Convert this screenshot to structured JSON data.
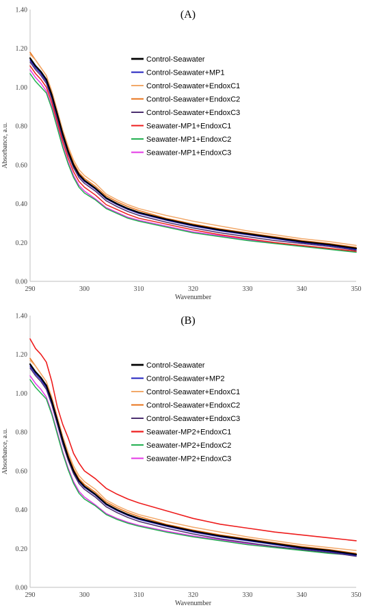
{
  "chart_data": [
    {
      "type": "line",
      "title": "(A)",
      "xlabel": "Wavenumber",
      "ylabel": "Absorbance, a.u.",
      "xlim": [
        290,
        350
      ],
      "ylim": [
        0,
        1.4
      ],
      "xticks": [
        290,
        300,
        310,
        320,
        330,
        340,
        350
      ],
      "xtick_labels": [
        "290",
        "300",
        "310",
        "320",
        "330",
        "340",
        "350"
      ],
      "yticks": [
        0,
        0.2,
        0.4,
        0.6,
        0.8,
        1.0,
        1.2,
        1.4
      ],
      "ytick_labels": [
        "0.00",
        "0.20",
        "0.40",
        "0.60",
        "0.80",
        "1.00",
        "1.20",
        "1.40"
      ],
      "grid": false,
      "legend_position": "top-right",
      "x": [
        290,
        291,
        292,
        293,
        294,
        295,
        296,
        297,
        298,
        299,
        300,
        302,
        304,
        306,
        308,
        310,
        315,
        320,
        325,
        330,
        335,
        340,
        345,
        350
      ],
      "series": [
        {
          "name": "Control-Seawater",
          "color": "#000000",
          "width": 2.2,
          "values": [
            1.15,
            1.11,
            1.08,
            1.04,
            0.96,
            0.86,
            0.76,
            0.67,
            0.6,
            0.55,
            0.52,
            0.48,
            0.43,
            0.4,
            0.375,
            0.355,
            0.32,
            0.29,
            0.265,
            0.245,
            0.225,
            0.205,
            0.19,
            0.17
          ]
        },
        {
          "name": "Control-Seawater+MP1",
          "color": "#1f1fbf",
          "width": 1.5,
          "values": [
            1.14,
            1.1,
            1.07,
            1.03,
            0.95,
            0.85,
            0.75,
            0.665,
            0.595,
            0.545,
            0.515,
            0.475,
            0.425,
            0.395,
            0.37,
            0.35,
            0.315,
            0.285,
            0.26,
            0.24,
            0.22,
            0.2,
            0.185,
            0.165
          ]
        },
        {
          "name": "Control-Seawater+EndoxC1",
          "color": "#f2a869",
          "width": 1.5,
          "values": [
            1.17,
            1.14,
            1.1,
            1.06,
            0.98,
            0.88,
            0.78,
            0.695,
            0.625,
            0.575,
            0.545,
            0.505,
            0.45,
            0.42,
            0.395,
            0.375,
            0.34,
            0.31,
            0.285,
            0.26,
            0.24,
            0.22,
            0.205,
            0.185
          ]
        },
        {
          "name": "Control-Seawater+EndoxC2",
          "color": "#e8731a",
          "width": 1.5,
          "values": [
            1.18,
            1.14,
            1.1,
            1.06,
            0.97,
            0.87,
            0.77,
            0.68,
            0.61,
            0.56,
            0.53,
            0.49,
            0.44,
            0.41,
            0.385,
            0.365,
            0.325,
            0.295,
            0.27,
            0.25,
            0.23,
            0.21,
            0.195,
            0.175
          ]
        },
        {
          "name": "Control-Seawater+EndoxC3",
          "color": "#4b2e6e",
          "width": 1.5,
          "values": [
            1.13,
            1.09,
            1.06,
            1.02,
            0.94,
            0.84,
            0.74,
            0.655,
            0.585,
            0.535,
            0.505,
            0.465,
            0.415,
            0.385,
            0.36,
            0.34,
            0.305,
            0.275,
            0.25,
            0.23,
            0.21,
            0.195,
            0.18,
            0.16
          ]
        },
        {
          "name": "Seawater-MP1+EndoxC1",
          "color": "#ee1c1c",
          "width": 1.5,
          "values": [
            1.11,
            1.07,
            1.04,
            1.0,
            0.92,
            0.82,
            0.72,
            0.635,
            0.565,
            0.515,
            0.485,
            0.445,
            0.395,
            0.37,
            0.345,
            0.325,
            0.295,
            0.265,
            0.24,
            0.22,
            0.2,
            0.185,
            0.17,
            0.155
          ]
        },
        {
          "name": "Seawater-MP1+EndoxC2",
          "color": "#22b050",
          "width": 1.5,
          "values": [
            1.07,
            1.03,
            1.0,
            0.97,
            0.89,
            0.79,
            0.69,
            0.605,
            0.535,
            0.485,
            0.455,
            0.42,
            0.375,
            0.35,
            0.325,
            0.31,
            0.28,
            0.25,
            0.23,
            0.21,
            0.195,
            0.18,
            0.165,
            0.15
          ]
        },
        {
          "name": "Seawater-MP1+EndoxC3",
          "color": "#e336e6",
          "width": 1.5,
          "values": [
            1.09,
            1.05,
            1.02,
            0.98,
            0.9,
            0.8,
            0.7,
            0.615,
            0.545,
            0.495,
            0.465,
            0.425,
            0.38,
            0.355,
            0.33,
            0.315,
            0.285,
            0.255,
            0.235,
            0.215,
            0.198,
            0.183,
            0.168,
            0.152
          ]
        }
      ]
    },
    {
      "type": "line",
      "title": "(B)",
      "xlabel": "Wavenumber",
      "ylabel": "Absorbance, a.u.",
      "xlim": [
        290,
        350
      ],
      "ylim": [
        0,
        1.4
      ],
      "xticks": [
        290,
        300,
        310,
        320,
        330,
        340,
        350
      ],
      "xtick_labels": [
        "290",
        "300",
        "310",
        "320",
        "330",
        "340",
        "350"
      ],
      "yticks": [
        0,
        0.2,
        0.4,
        0.6,
        0.8,
        1.0,
        1.2,
        1.4
      ],
      "ytick_labels": [
        "0.00",
        "0.20",
        "0.40",
        "0.60",
        "0.80",
        "1.00",
        "1.20",
        "1.40"
      ],
      "grid": false,
      "legend_position": "top-right",
      "x": [
        290,
        291,
        292,
        293,
        294,
        295,
        296,
        297,
        298,
        299,
        300,
        302,
        304,
        306,
        308,
        310,
        315,
        320,
        325,
        330,
        335,
        340,
        345,
        350
      ],
      "series": [
        {
          "name": "Control-Seawater",
          "color": "#000000",
          "width": 2.2,
          "values": [
            1.15,
            1.11,
            1.08,
            1.04,
            0.96,
            0.86,
            0.76,
            0.67,
            0.6,
            0.55,
            0.52,
            0.48,
            0.43,
            0.4,
            0.375,
            0.355,
            0.32,
            0.29,
            0.265,
            0.245,
            0.225,
            0.205,
            0.19,
            0.17
          ]
        },
        {
          "name": "Control-Seawater+MP2",
          "color": "#1f1fbf",
          "width": 1.5,
          "values": [
            1.14,
            1.1,
            1.07,
            1.03,
            0.95,
            0.85,
            0.75,
            0.665,
            0.595,
            0.545,
            0.515,
            0.475,
            0.425,
            0.395,
            0.37,
            0.35,
            0.315,
            0.285,
            0.26,
            0.24,
            0.22,
            0.2,
            0.185,
            0.165
          ]
        },
        {
          "name": "Control-Seawater+EndoxC1",
          "color": "#f2a869",
          "width": 1.5,
          "values": [
            1.17,
            1.14,
            1.1,
            1.06,
            0.98,
            0.88,
            0.78,
            0.695,
            0.625,
            0.575,
            0.545,
            0.505,
            0.45,
            0.42,
            0.395,
            0.375,
            0.34,
            0.31,
            0.285,
            0.26,
            0.24,
            0.22,
            0.205,
            0.19
          ]
        },
        {
          "name": "Control-Seawater+EndoxC2",
          "color": "#e8731a",
          "width": 1.5,
          "values": [
            1.18,
            1.14,
            1.1,
            1.06,
            0.97,
            0.87,
            0.77,
            0.68,
            0.61,
            0.56,
            0.53,
            0.49,
            0.44,
            0.41,
            0.385,
            0.365,
            0.325,
            0.295,
            0.27,
            0.25,
            0.23,
            0.21,
            0.195,
            0.175
          ]
        },
        {
          "name": "Control-Seawater+EndoxC3",
          "color": "#4b2e6e",
          "width": 1.5,
          "values": [
            1.13,
            1.09,
            1.06,
            1.02,
            0.94,
            0.84,
            0.74,
            0.655,
            0.585,
            0.535,
            0.505,
            0.465,
            0.415,
            0.385,
            0.36,
            0.34,
            0.305,
            0.275,
            0.25,
            0.23,
            0.21,
            0.195,
            0.18,
            0.16
          ]
        },
        {
          "name": "Seawater-MP2+EndoxC1",
          "color": "#ee1c1c",
          "width": 1.6,
          "values": [
            1.28,
            1.23,
            1.2,
            1.16,
            1.06,
            0.93,
            0.84,
            0.77,
            0.69,
            0.64,
            0.6,
            0.56,
            0.51,
            0.48,
            0.455,
            0.435,
            0.395,
            0.355,
            0.325,
            0.305,
            0.285,
            0.27,
            0.255,
            0.24
          ]
        },
        {
          "name": "Seawater-MP2+EndoxC2",
          "color": "#22b050",
          "width": 1.5,
          "values": [
            1.07,
            1.03,
            1.0,
            0.97,
            0.89,
            0.79,
            0.69,
            0.605,
            0.535,
            0.485,
            0.455,
            0.42,
            0.375,
            0.35,
            0.33,
            0.315,
            0.285,
            0.26,
            0.24,
            0.22,
            0.205,
            0.19,
            0.175,
            0.165
          ]
        },
        {
          "name": "Seawater-MP2+EndoxC3",
          "color": "#e336e6",
          "width": 1.5,
          "values": [
            1.09,
            1.05,
            1.02,
            0.98,
            0.9,
            0.8,
            0.7,
            0.615,
            0.545,
            0.495,
            0.465,
            0.425,
            0.38,
            0.355,
            0.335,
            0.32,
            0.29,
            0.265,
            0.245,
            0.225,
            0.21,
            0.195,
            0.18,
            0.168
          ]
        }
      ]
    }
  ]
}
